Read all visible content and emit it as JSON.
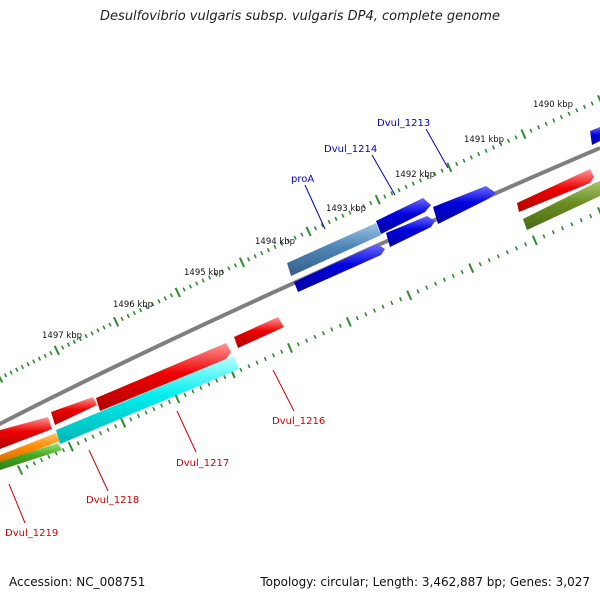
{
  "title": "Desulfovibrio vulgaris subsp. vulgaris DP4, complete genome",
  "footer": {
    "accession": "Accession: NC_008751",
    "topology": "Topology: circular; Length: 3,462,887 bp; Genes: 3,027"
  },
  "colors": {
    "backbone": "#7f7f7f",
    "tick": "#2e8b2e",
    "blue_label": "#0000cc",
    "red_label": "#cc0000",
    "red_gene": "#ee0000",
    "blue_gene": "#0000dd",
    "steel_gene": "#4f86b8",
    "cyan_gene": "#00eeee",
    "olive_gene": "#6b8e23",
    "orange_gene": "#ff8c00",
    "green_gene": "#44aa22"
  },
  "ruler": [
    "1490 kbp",
    "1491 kbp",
    "1492 kbp",
    "1493 kbp",
    "1494 kbp",
    "1495 kbp",
    "1496 kbp",
    "1497 kbp"
  ],
  "gene_labels": {
    "dvul_1213": "Dvul_1213",
    "dvul_1214": "Dvul_1214",
    "proa": "proA",
    "dvul_1216": "Dvul_1216",
    "dvul_1217": "Dvul_1217",
    "dvul_1218": "Dvul_1218",
    "dvul_1219": "Dvul_1219"
  }
}
